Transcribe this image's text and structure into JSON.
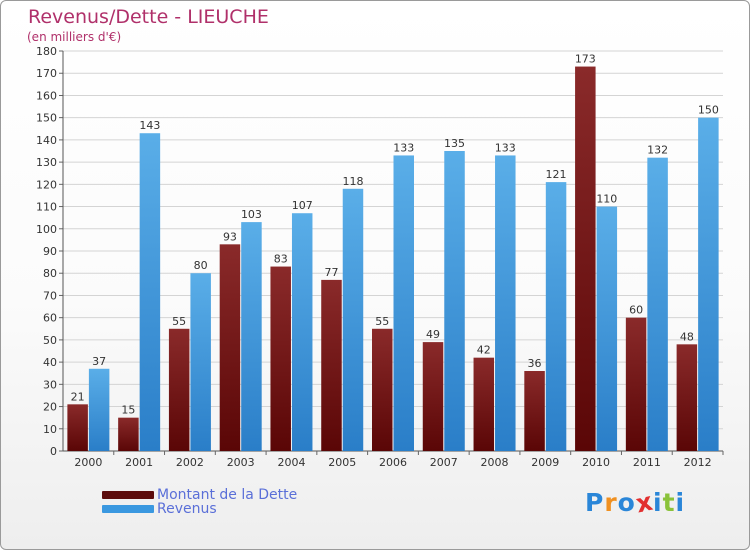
{
  "chart_data": {
    "type": "bar",
    "title": "Revenus/Dette - LIEUCHE",
    "subtitle": "(en milliers d'€)",
    "categories": [
      "2000",
      "2001",
      "2002",
      "2003",
      "2004",
      "2005",
      "2006",
      "2007",
      "2008",
      "2009",
      "2010",
      "2011",
      "2012"
    ],
    "series": [
      {
        "name": "Montant de la Dette",
        "color": "#7a1a1a",
        "values": [
          21,
          15,
          55,
          93,
          83,
          77,
          55,
          49,
          42,
          36,
          173,
          60,
          48
        ]
      },
      {
        "name": "Revenus",
        "color": "#3a98e0",
        "values": [
          37,
          143,
          80,
          103,
          107,
          118,
          133,
          135,
          133,
          121,
          110,
          132,
          150
        ]
      }
    ],
    "ylim": [
      0,
      180
    ],
    "yticks": [
      0,
      10,
      20,
      30,
      40,
      50,
      60,
      70,
      80,
      90,
      100,
      110,
      120,
      130,
      140,
      150,
      160,
      170,
      180
    ],
    "xlabel": "",
    "ylabel": "",
    "grid": true,
    "legend": "bottom-left"
  },
  "legend": {
    "items": [
      {
        "label": "Montant de la Dette",
        "color": "#5c0c0c"
      },
      {
        "label": "Revenus",
        "color": "#3a98e0"
      }
    ]
  },
  "logo": {
    "text": "Proxiti",
    "letters": [
      "P",
      "r",
      "o",
      "x",
      "i",
      "t",
      "i"
    ],
    "colors": [
      "#2a86d8",
      "#f09020",
      "#2a86d8",
      "#e23030",
      "#2a86d8",
      "#8ac23a",
      "#2a86d8"
    ]
  }
}
